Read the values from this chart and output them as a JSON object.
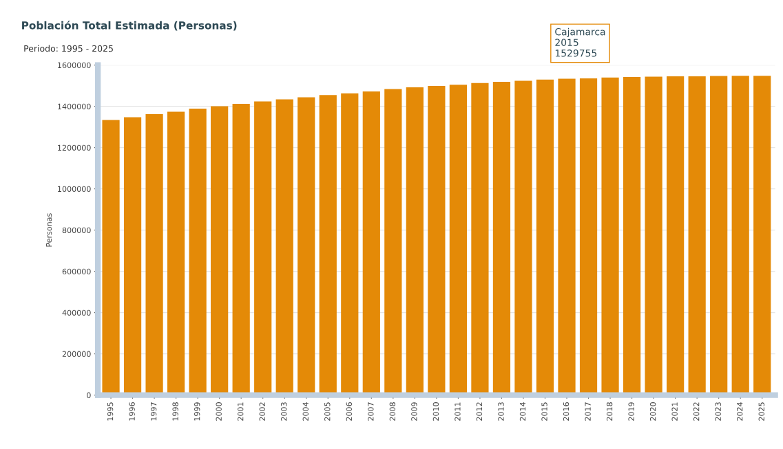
{
  "chart_data": {
    "type": "bar",
    "title": "Población Total Estimada (Personas)",
    "subtitle": "Periodo: 1995 - 2025",
    "ylabel": "Personas",
    "categories": [
      "1995",
      "1996",
      "1997",
      "1998",
      "1999",
      "2000",
      "2001",
      "2002",
      "2003",
      "2004",
      "2005",
      "2006",
      "2007",
      "2008",
      "2009",
      "2010",
      "2011",
      "2012",
      "2013",
      "2014",
      "2015",
      "2016",
      "2017",
      "2018",
      "2019",
      "2020",
      "2021",
      "2022",
      "2023",
      "2024",
      "2025"
    ],
    "values": [
      1334000,
      1347000,
      1362000,
      1374000,
      1389000,
      1401000,
      1412000,
      1424000,
      1434000,
      1444000,
      1455000,
      1463000,
      1472000,
      1484000,
      1492000,
      1499000,
      1505000,
      1513000,
      1519000,
      1524000,
      1529755,
      1534000,
      1536000,
      1540000,
      1542000,
      1544000,
      1546000,
      1546000,
      1547000,
      1548000,
      1548000
    ],
    "color": "#e48a07",
    "ylim": [
      0,
      1600000
    ],
    "yticks": [
      0,
      200000,
      400000,
      600000,
      800000,
      1000000,
      1200000,
      1400000,
      1600000
    ],
    "grid": "y",
    "annotations": [
      {
        "text": "Cajamarca\n2015\n1529755",
        "x": "2015",
        "y": 1529755
      }
    ]
  }
}
